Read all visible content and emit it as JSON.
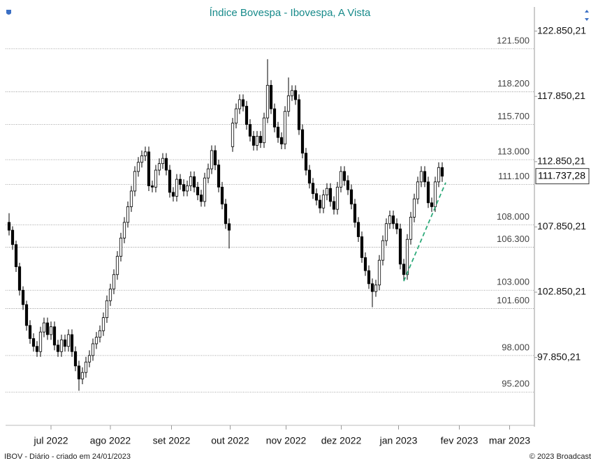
{
  "chart_data": {
    "type": "candlestick",
    "title": "Índice Bovespa - Ibovespa, A Vista",
    "source_note": "IBOV - Diário - criado em 24/01/2023",
    "copyright": "© 2023 Broadcast",
    "up_color": "#ffffff",
    "down_color": "#000000",
    "xlim": [
      -1,
      150.4
    ],
    "xticks": [
      {
        "value": 12,
        "label": "jul 2022"
      },
      {
        "value": 29,
        "label": "ago 2022"
      },
      {
        "value": 46.5,
        "label": "set 2022"
      },
      {
        "value": 63.3,
        "label": "out 2022"
      },
      {
        "value": 79.3,
        "label": "nov 2022"
      },
      {
        "value": 95.1,
        "label": "dez 2022"
      },
      {
        "value": 111.5,
        "label": "jan 2023"
      },
      {
        "value": 128.9,
        "label": "fev 2023"
      },
      {
        "value": 143.3,
        "label": "mar 2023"
      }
    ],
    "ylim": [
      92650,
      124700
    ],
    "yticks": [
      {
        "value": 122850.21,
        "label": "122.850,21"
      },
      {
        "value": 117850.21,
        "label": "117.850,21"
      },
      {
        "value": 112850.21,
        "label": "112.850,21"
      },
      {
        "value": 107850.21,
        "label": "107.850,21"
      },
      {
        "value": 102850.21,
        "label": "102.850,21"
      },
      {
        "value": 97850.21,
        "label": "97.850,21"
      }
    ],
    "levels": [
      {
        "value": 121500,
        "label": "121.500"
      },
      {
        "value": 118200,
        "label": "118.200"
      },
      {
        "value": 115700,
        "label": "115.700"
      },
      {
        "value": 113000,
        "label": "113.000"
      },
      {
        "value": 111100,
        "label": "111.100"
      },
      {
        "value": 108000,
        "label": "108.000"
      },
      {
        "value": 106300,
        "label": "106.300"
      },
      {
        "value": 103000,
        "label": "103.000"
      },
      {
        "value": 101600,
        "label": "101.600"
      },
      {
        "value": 98000,
        "label": "98.000"
      },
      {
        "value": 95200,
        "label": "95.200"
      }
    ],
    "last_price": {
      "value": 111737.28,
      "label": "111.737,28"
    },
    "trendline": {
      "color": "#2eaa7a",
      "x": [
        113,
        125
      ],
      "y": [
        103700,
        111250
      ]
    },
    "candles": [
      [
        108200,
        108900,
        107200,
        107600
      ],
      [
        107600,
        107900,
        106100,
        106500
      ],
      [
        106500,
        106800,
        104400,
        104800
      ],
      [
        104800,
        105100,
        102600,
        103000
      ],
      [
        103000,
        103300,
        101500,
        101900
      ],
      [
        101900,
        102200,
        99900,
        100300
      ],
      [
        100300,
        100700,
        98900,
        99300
      ],
      [
        99300,
        99700,
        98300,
        98700
      ],
      [
        98700,
        99100,
        97900,
        98300
      ],
      [
        98300,
        100200,
        97900,
        99800
      ],
      [
        99800,
        100900,
        99400,
        100500
      ],
      [
        100500,
        100900,
        99200,
        99600
      ],
      [
        99600,
        100600,
        99200,
        100200
      ],
      [
        100200,
        100600,
        98400,
        98800
      ],
      [
        98800,
        99200,
        97900,
        98300
      ],
      [
        98300,
        99600,
        97900,
        99200
      ],
      [
        99200,
        99600,
        98300,
        98700
      ],
      [
        98700,
        100000,
        98300,
        99600
      ],
      [
        99600,
        100000,
        97900,
        98300
      ],
      [
        98300,
        98700,
        96800,
        97200
      ],
      [
        97200,
        97600,
        95300,
        96200
      ],
      [
        96200,
        97100,
        95800,
        96700
      ],
      [
        96700,
        97900,
        96300,
        97500
      ],
      [
        97500,
        98400,
        97100,
        98000
      ],
      [
        98000,
        99300,
        97600,
        98900
      ],
      [
        98900,
        99800,
        98500,
        99400
      ],
      [
        99400,
        100300,
        99000,
        99900
      ],
      [
        99900,
        101300,
        99500,
        100900
      ],
      [
        100900,
        102600,
        100500,
        102200
      ],
      [
        102200,
        103500,
        101800,
        103100
      ],
      [
        103100,
        104600,
        102700,
        104200
      ],
      [
        104200,
        106000,
        103800,
        105600
      ],
      [
        105600,
        107400,
        105200,
        107000
      ],
      [
        107000,
        108600,
        106600,
        108200
      ],
      [
        108200,
        109800,
        107800,
        109400
      ],
      [
        109400,
        111000,
        109000,
        110600
      ],
      [
        110600,
        112500,
        110200,
        112100
      ],
      [
        112100,
        113200,
        111700,
        112800
      ],
      [
        112800,
        113700,
        112400,
        113300
      ],
      [
        113300,
        114000,
        112900,
        113600
      ],
      [
        113600,
        114000,
        110600,
        111000
      ],
      [
        111000,
        111400,
        110500,
        110900
      ],
      [
        110900,
        112600,
        110500,
        112200
      ],
      [
        112200,
        113100,
        111800,
        112700
      ],
      [
        112700,
        113500,
        112300,
        113100
      ],
      [
        113100,
        113500,
        111800,
        112200
      ],
      [
        112200,
        112600,
        110100,
        110500
      ],
      [
        110500,
        110900,
        109800,
        110200
      ],
      [
        110200,
        111900,
        109800,
        111500
      ],
      [
        111500,
        111900,
        110700,
        111100
      ],
      [
        111100,
        111500,
        110200,
        110600
      ],
      [
        110600,
        111400,
        110200,
        111000
      ],
      [
        111000,
        112100,
        110600,
        111700
      ],
      [
        111700,
        112100,
        110500,
        110900
      ],
      [
        110900,
        111300,
        109900,
        110300
      ],
      [
        110300,
        110700,
        109400,
        109800
      ],
      [
        109800,
        112000,
        109400,
        111600
      ],
      [
        111600,
        112700,
        111200,
        112300
      ],
      [
        112300,
        114100,
        111900,
        113700
      ],
      [
        113700,
        114100,
        112200,
        112600
      ],
      [
        112600,
        113000,
        110500,
        110900
      ],
      [
        110900,
        111300,
        109200,
        109600
      ],
      [
        109600,
        110000,
        107700,
        108100
      ],
      [
        108100,
        108500,
        106200,
        107600
      ],
      [
        114000,
        116200,
        113600,
        115800
      ],
      [
        115800,
        117300,
        115400,
        116900
      ],
      [
        116900,
        118000,
        116500,
        117600
      ],
      [
        117600,
        118000,
        116700,
        117100
      ],
      [
        117100,
        117500,
        115300,
        115700
      ],
      [
        115700,
        116100,
        114400,
        114800
      ],
      [
        114800,
        115200,
        113700,
        114100
      ],
      [
        114100,
        115200,
        113700,
        114800
      ],
      [
        114800,
        115200,
        113900,
        114300
      ],
      [
        114300,
        116600,
        113900,
        116200
      ],
      [
        116200,
        120700,
        115800,
        118700
      ],
      [
        118700,
        119100,
        116500,
        116900
      ],
      [
        116900,
        117300,
        115100,
        115500
      ],
      [
        115500,
        115900,
        114300,
        114700
      ],
      [
        114700,
        115100,
        113800,
        114200
      ],
      [
        114200,
        117100,
        113800,
        116700
      ],
      [
        116700,
        119300,
        116300,
        117900
      ],
      [
        117900,
        118700,
        117500,
        118300
      ],
      [
        118300,
        118700,
        117200,
        117600
      ],
      [
        117600,
        118000,
        114900,
        115300
      ],
      [
        115300,
        115700,
        113100,
        113500
      ],
      [
        113500,
        113900,
        111800,
        112200
      ],
      [
        112200,
        112600,
        110800,
        111200
      ],
      [
        111200,
        111600,
        110000,
        110400
      ],
      [
        110400,
        110800,
        109500,
        109900
      ],
      [
        109900,
        110300,
        108900,
        109300
      ],
      [
        109300,
        110700,
        108900,
        110300
      ],
      [
        110300,
        111200,
        109900,
        110800
      ],
      [
        110800,
        111200,
        109400,
        109800
      ],
      [
        109800,
        110200,
        108800,
        109200
      ],
      [
        109200,
        111300,
        108800,
        110900
      ],
      [
        110900,
        112500,
        110500,
        112100
      ],
      [
        112100,
        112500,
        111000,
        111400
      ],
      [
        111400,
        111800,
        110300,
        110700
      ],
      [
        110700,
        111100,
        109200,
        109600
      ],
      [
        109600,
        110000,
        107800,
        108200
      ],
      [
        108200,
        108600,
        106700,
        107100
      ],
      [
        107100,
        107500,
        105100,
        105500
      ],
      [
        105500,
        105900,
        104100,
        104500
      ],
      [
        104500,
        104900,
        103100,
        103500
      ],
      [
        103500,
        103900,
        101700,
        102900
      ],
      [
        102900,
        103800,
        102500,
        103400
      ],
      [
        103400,
        105700,
        103000,
        105300
      ],
      [
        105300,
        107200,
        104900,
        106800
      ],
      [
        106800,
        108500,
        106400,
        108100
      ],
      [
        108100,
        109100,
        107700,
        108700
      ],
      [
        108700,
        109100,
        107700,
        108100
      ],
      [
        108100,
        108500,
        107300,
        107700
      ],
      [
        107700,
        108100,
        104600,
        105000
      ],
      [
        105000,
        105400,
        103700,
        104200
      ],
      [
        104200,
        107300,
        103800,
        106900
      ],
      [
        106900,
        109000,
        106500,
        108600
      ],
      [
        108600,
        110400,
        108200,
        110000
      ],
      [
        110000,
        111700,
        109600,
        111300
      ],
      [
        111300,
        112500,
        110900,
        112100
      ],
      [
        112100,
        112500,
        110900,
        111300
      ],
      [
        111300,
        111700,
        109300,
        109700
      ],
      [
        109700,
        110100,
        109000,
        109400
      ],
      [
        109400,
        111700,
        109000,
        111300
      ],
      [
        111300,
        112800,
        110900,
        112400
      ],
      [
        112400,
        112800,
        111300,
        111737.28
      ]
    ]
  }
}
